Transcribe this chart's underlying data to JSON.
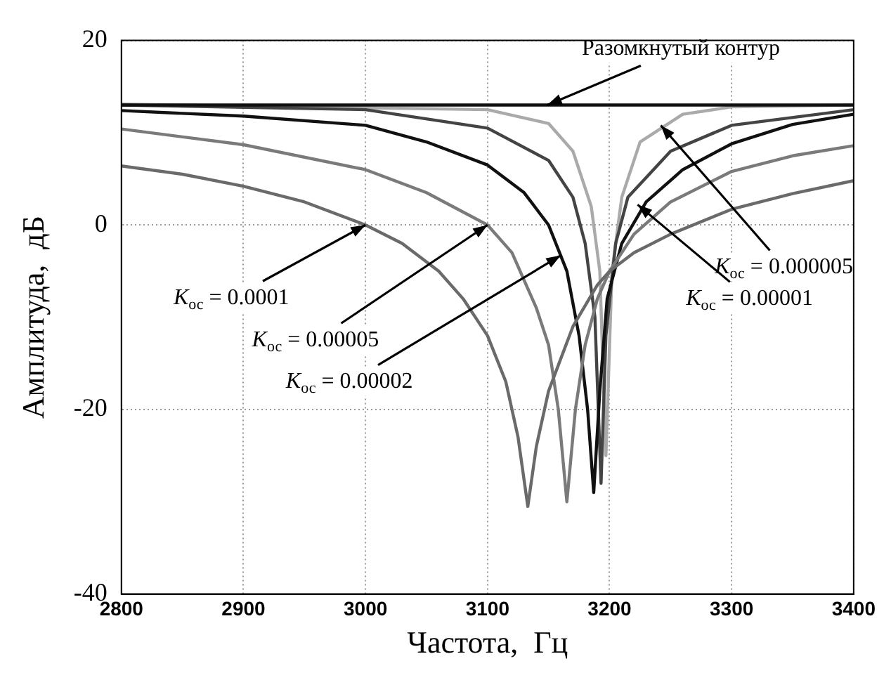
{
  "chart_data": {
    "type": "line",
    "xlabel": "Частота,  Гц",
    "ylabel": "Амплитуда,  дБ",
    "xlim": [
      2800,
      3400
    ],
    "xticks": [
      2800,
      2900,
      3000,
      3100,
      3200,
      3300,
      3400
    ],
    "ylim": [
      -40,
      20
    ],
    "yticks": [
      -40,
      -20,
      0,
      20
    ],
    "grid": true,
    "legend": false,
    "marker": "none",
    "line_style": "solid",
    "series": [
      {
        "color": "#111111",
        "x": [
          2800,
          3400
        ],
        "values": [
          13,
          13
        ]
      },
      {
        "color": "#6a6a6a",
        "x": [
          2800,
          2850,
          2900,
          2950,
          3000,
          3030,
          3060,
          3080,
          3100,
          3115,
          3125,
          3133,
          3140,
          3150,
          3170,
          3190,
          3200,
          3220,
          3250,
          3300,
          3350,
          3400
        ],
        "values": [
          6.4,
          5.5,
          4.2,
          2.5,
          0,
          -2,
          -5,
          -8,
          -12,
          -17,
          -23,
          -30.5,
          -24,
          -18,
          -11,
          -6.5,
          -5,
          -3,
          -1,
          1.7,
          3.4,
          4.8
        ]
      },
      {
        "color": "#7a7a7a",
        "x": [
          2800,
          2900,
          3000,
          3050,
          3100,
          3120,
          3140,
          3150,
          3158,
          3165,
          3172,
          3180,
          3190,
          3200,
          3220,
          3250,
          3300,
          3350,
          3400
        ],
        "values": [
          10.4,
          8.7,
          6,
          3.5,
          0,
          -3,
          -9,
          -13,
          -20,
          -30,
          -20,
          -13,
          -8,
          -5,
          -1,
          2.5,
          5.8,
          7.5,
          8.6
        ]
      },
      {
        "color": "#111111",
        "x": [
          2800,
          2900,
          3000,
          3050,
          3100,
          3130,
          3150,
          3165,
          3175,
          3182,
          3187,
          3192,
          3198,
          3210,
          3230,
          3260,
          3300,
          3350,
          3400
        ],
        "values": [
          12.4,
          11.8,
          10.8,
          9,
          6.5,
          3.5,
          0,
          -5,
          -12,
          -20,
          -29,
          -18,
          -8,
          -2,
          2.5,
          6,
          8.8,
          10.9,
          12
        ]
      },
      {
        "color": "#444444",
        "x": [
          2800,
          3000,
          3100,
          3150,
          3170,
          3180,
          3188,
          3193,
          3197,
          3205,
          3215,
          3250,
          3300,
          3400
        ],
        "values": [
          13,
          12.5,
          10.5,
          7,
          3,
          -2,
          -10,
          -28,
          -12,
          -2,
          3,
          8,
          10.8,
          12.5
        ]
      },
      {
        "color": "#aaaaaa",
        "x": [
          2800,
          3100,
          3150,
          3170,
          3185,
          3192,
          3197,
          3202,
          3210,
          3225,
          3260,
          3300,
          3400
        ],
        "values": [
          13.1,
          12.5,
          11,
          8,
          2,
          -5,
          -25,
          -5,
          3,
          9,
          12,
          12.8,
          13
        ]
      }
    ],
    "annotations": [
      {
        "text": "Разомкнутый контур",
        "x": 3149,
        "y": 13
      },
      {
        "text": "K$_{ос}$ = 0.0001",
        "x": 3000,
        "y": 0
      },
      {
        "text": "K$_{ос}$ = 0.00005",
        "x": 3100,
        "y": 0
      },
      {
        "text": "K$_{ос}$ = 0.00002",
        "x": 3160,
        "y": -3.3
      },
      {
        "text": "K$_{ос}$ = 0.000005",
        "x": 3242,
        "y": 10.8
      },
      {
        "text": "K$_{ос}$ = 0.00001",
        "x": 3223,
        "y": 2.2
      }
    ]
  }
}
